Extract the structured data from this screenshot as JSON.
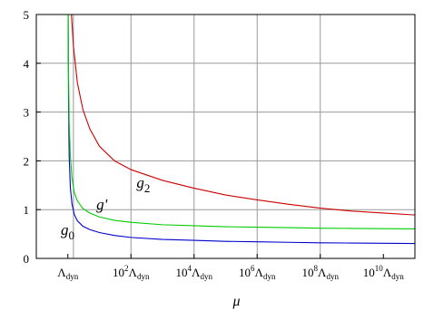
{
  "chart_data": {
    "type": "line",
    "xlabel": "μ",
    "ylabel": "",
    "x_scale": "log",
    "xlim": [
      0.1,
      100000000000.0
    ],
    "ylim": [
      0,
      5
    ],
    "grid": true,
    "x_gridlines": [
      1.5,
      100,
      10000,
      1000000,
      100000000
    ],
    "y_ticks": [
      0,
      1,
      2,
      3,
      4,
      5
    ],
    "x_ticks": [
      {
        "value": 1,
        "base": "Λ",
        "sub": "dyn",
        "prefix": "",
        "exp": ""
      },
      {
        "value": 100,
        "base": "Λ",
        "sub": "dyn",
        "prefix": "10",
        "exp": "2"
      },
      {
        "value": 10000,
        "base": "Λ",
        "sub": "dyn",
        "prefix": "10",
        "exp": "4"
      },
      {
        "value": 1000000,
        "base": "Λ",
        "sub": "dyn",
        "prefix": "10",
        "exp": "6"
      },
      {
        "value": 100000000,
        "base": "Λ",
        "sub": "dyn",
        "prefix": "10",
        "exp": "8"
      },
      {
        "value": 10000000000,
        "base": "Λ",
        "sub": "dyn",
        "prefix": "10",
        "exp": "10"
      }
    ],
    "series": [
      {
        "name": "g0",
        "label_base": "g",
        "label_sub": "0",
        "color": "#0000cc",
        "label_at": [
          0.6,
          0.48
        ],
        "points": [
          [
            1.02,
            5
          ],
          [
            1.05,
            3.2
          ],
          [
            1.1,
            2.1
          ],
          [
            1.2,
            1.45
          ],
          [
            1.35,
            1.12
          ],
          [
            1.6,
            0.9
          ],
          [
            2,
            0.77
          ],
          [
            3,
            0.66
          ],
          [
            5,
            0.59
          ],
          [
            10,
            0.53
          ],
          [
            30,
            0.47
          ],
          [
            100,
            0.43
          ],
          [
            1000,
            0.39
          ],
          [
            10000,
            0.37
          ],
          [
            100000,
            0.35
          ],
          [
            1000000,
            0.34
          ],
          [
            10000000,
            0.33
          ],
          [
            100000000,
            0.32
          ],
          [
            1000000000,
            0.315
          ],
          [
            10000000000,
            0.31
          ],
          [
            100000000000,
            0.305
          ]
        ]
      },
      {
        "name": "g'",
        "label_base": "g'",
        "label_sub": "",
        "color": "#00cc00",
        "label_at": [
          8,
          1.0
        ],
        "points": [
          [
            1.02,
            5
          ],
          [
            1.05,
            3.8
          ],
          [
            1.1,
            2.8
          ],
          [
            1.2,
            2.1
          ],
          [
            1.35,
            1.65
          ],
          [
            1.6,
            1.35
          ],
          [
            2,
            1.18
          ],
          [
            3,
            1.02
          ],
          [
            5,
            0.93
          ],
          [
            10,
            0.85
          ],
          [
            30,
            0.78
          ],
          [
            100,
            0.74
          ],
          [
            1000,
            0.69
          ],
          [
            10000,
            0.67
          ],
          [
            100000,
            0.65
          ],
          [
            1000000,
            0.64
          ],
          [
            10000000,
            0.63
          ],
          [
            100000000,
            0.62
          ],
          [
            1000000000,
            0.615
          ],
          [
            10000000000,
            0.61
          ],
          [
            100000000000,
            0.605
          ]
        ]
      },
      {
        "name": "g2",
        "label_base": "g",
        "label_sub": "2",
        "color": "#cc0000",
        "label_at": [
          150,
          1.45
        ],
        "points": [
          [
            1.3,
            5
          ],
          [
            1.5,
            4.35
          ],
          [
            2,
            3.6
          ],
          [
            3,
            3.05
          ],
          [
            5,
            2.65
          ],
          [
            10,
            2.3
          ],
          [
            30,
            2.0
          ],
          [
            100,
            1.82
          ],
          [
            1000,
            1.6
          ],
          [
            10000,
            1.44
          ],
          [
            100000,
            1.3
          ],
          [
            1000000,
            1.2
          ],
          [
            10000000,
            1.11
          ],
          [
            100000000,
            1.03
          ],
          [
            1000000000,
            0.97
          ],
          [
            10000000000,
            0.93
          ],
          [
            100000000000,
            0.89
          ]
        ]
      }
    ]
  }
}
